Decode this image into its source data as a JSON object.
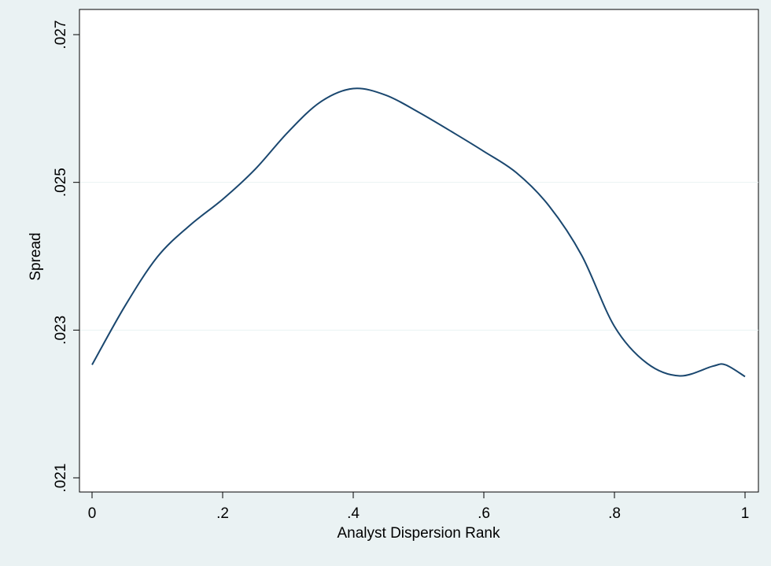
{
  "chart_data": {
    "type": "line",
    "title": "",
    "xlabel": "Analyst Dispersion Rank",
    "ylabel": "Spread",
    "xlim": [
      0,
      1
    ],
    "ylim": [
      0.021,
      0.027
    ],
    "x_ticks": [
      {
        "value": 0,
        "label": "0"
      },
      {
        "value": 0.2,
        "label": ".2"
      },
      {
        "value": 0.4,
        "label": ".4"
      },
      {
        "value": 0.6,
        "label": ".6"
      },
      {
        "value": 0.8,
        "label": ".8"
      },
      {
        "value": 1,
        "label": "1"
      }
    ],
    "y_ticks": [
      {
        "value": 0.021,
        "label": ".021"
      },
      {
        "value": 0.023,
        "label": ".023"
      },
      {
        "value": 0.025,
        "label": ".025"
      },
      {
        "value": 0.027,
        "label": ".027"
      }
    ],
    "grid": "horizontal",
    "line_color": "#1a476f",
    "series": [
      {
        "x": [
          0,
          0.05,
          0.1,
          0.15,
          0.2,
          0.25,
          0.3,
          0.35,
          0.4,
          0.45,
          0.5,
          0.55,
          0.6,
          0.65,
          0.7,
          0.75,
          0.8,
          0.85,
          0.9,
          0.95,
          0.97,
          1
        ],
        "values": [
          0.02253,
          0.02332,
          0.02399,
          0.02442,
          0.02477,
          0.02518,
          0.02568,
          0.02609,
          0.02627,
          0.02618,
          0.02595,
          0.02569,
          0.02542,
          0.02513,
          0.02468,
          0.02401,
          0.02305,
          0.02255,
          0.02238,
          0.02251,
          0.02253,
          0.02237
        ]
      }
    ]
  }
}
